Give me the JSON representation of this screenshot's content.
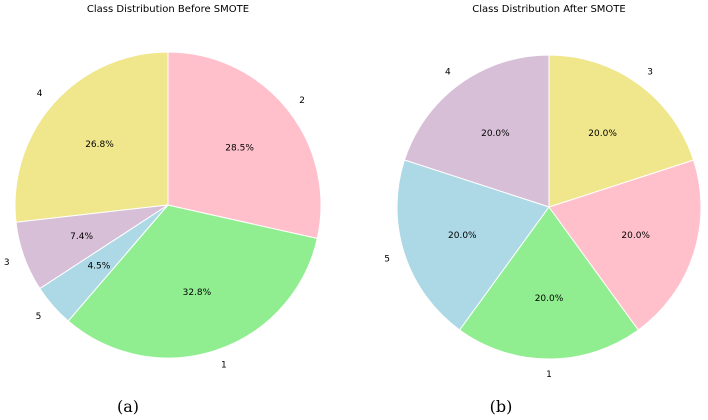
{
  "chart_data": [
    {
      "type": "pie",
      "title": "Class Distribution Before SMOTE",
      "caption": "(a)",
      "start_angle_deg": 90,
      "direction": "counterclockwise",
      "slices": [
        {
          "label": "4",
          "pct_label": "26.8%",
          "value": 26.8,
          "color": "#f0e68c"
        },
        {
          "label": "3",
          "pct_label": "7.4%",
          "value": 7.4,
          "color": "#d8bfd8"
        },
        {
          "label": "5",
          "pct_label": "4.5%",
          "value": 4.5,
          "color": "#add8e6"
        },
        {
          "label": "1",
          "pct_label": "32.8%",
          "value": 32.8,
          "color": "#90ee90"
        },
        {
          "label": "2",
          "pct_label": "28.5%",
          "value": 28.5,
          "color": "#ffc0cb"
        }
      ]
    },
    {
      "type": "pie",
      "title": "Class Distribution After SMOTE",
      "caption": "(b)",
      "start_angle_deg": 90,
      "direction": "counterclockwise",
      "slices": [
        {
          "label": "4",
          "pct_label": "20.0%",
          "value": 20.0,
          "color": "#d8bfd8"
        },
        {
          "label": "5",
          "pct_label": "20.0%",
          "value": 20.0,
          "color": "#add8e6"
        },
        {
          "label": "1",
          "pct_label": "20.0%",
          "value": 20.0,
          "color": "#90ee90"
        },
        {
          "label": "2",
          "pct_label": "20.0%",
          "value": 20.0,
          "color": "#ffc0cb"
        },
        {
          "label": "3",
          "pct_label": "20.0%",
          "value": 20.0,
          "color": "#f0e68c"
        }
      ]
    }
  ]
}
